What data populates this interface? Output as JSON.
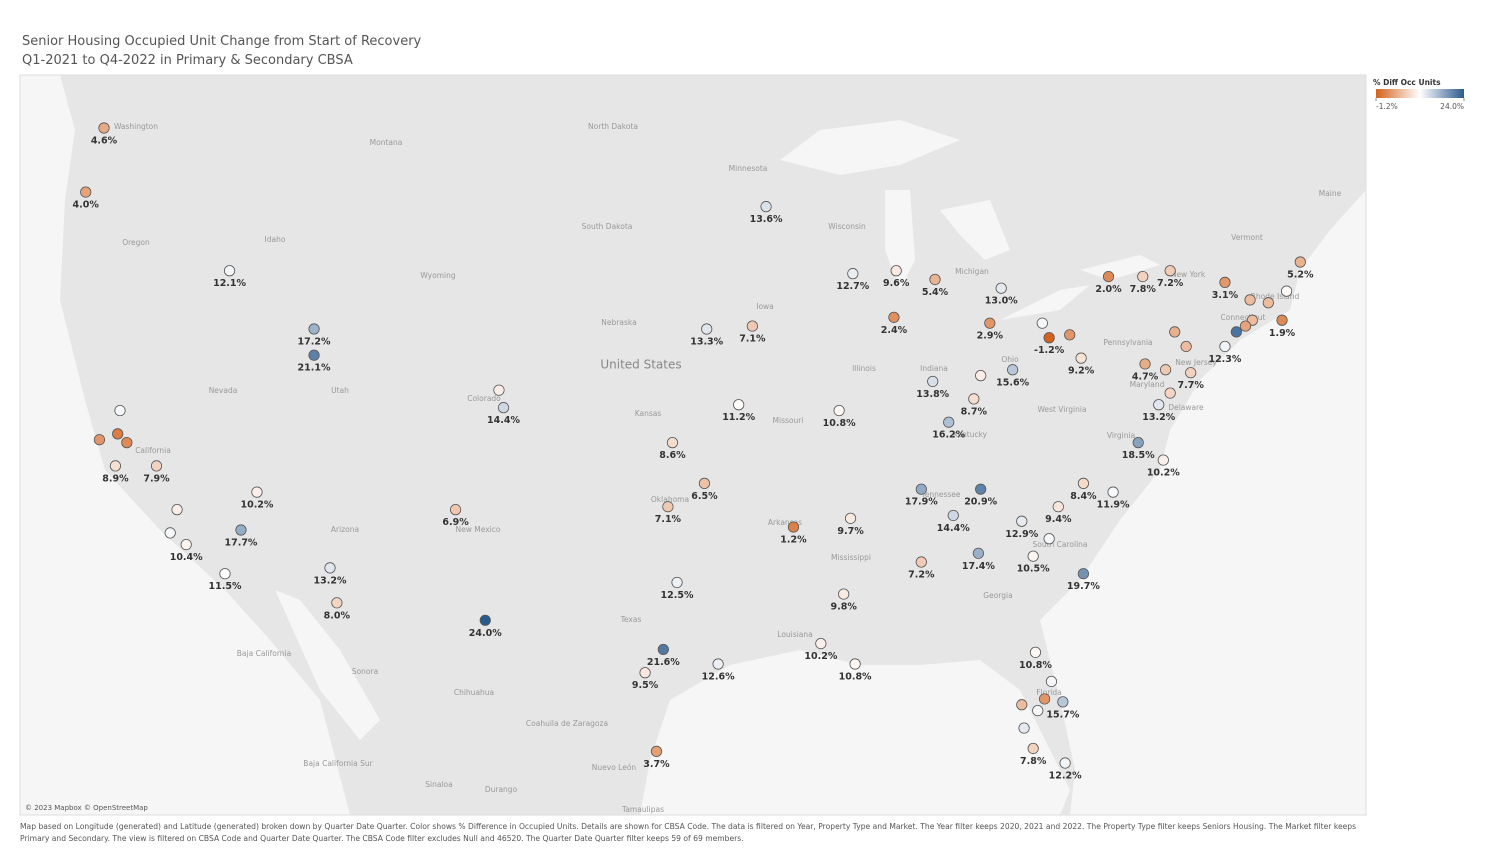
{
  "title": [
    "Senior Housing Occupied Unit Change from Start of Recovery",
    "Q1-2021 to Q4-2022 in Primary & Secondary CBSA"
  ],
  "chart_data": {
    "type": "map-points",
    "legend_title": "% Diff Occ Units",
    "clim": [
      -1.2,
      24.0
    ],
    "cticks": [
      {
        "value": -1.2,
        "label": "-1.2%"
      },
      {
        "value": 24.0,
        "label": "24.0%"
      }
    ],
    "colors": [
      "#d4621c",
      "#ffffff",
      "#2b5a8c"
    ],
    "lon": [
      -122.3,
      -123.1,
      -116.8,
      -113.1,
      -113.1,
      -121.6,
      -122.5,
      -121.7,
      -121.3,
      -121.8,
      -120.0,
      -115.6,
      -119.1,
      -119.4,
      -118.7,
      -116.3,
      -117.0,
      -112.4,
      -112.1,
      -106.9,
      -105.0,
      -104.8,
      -105.6,
      -93.3,
      -95.9,
      -93.9,
      -94.5,
      -97.4,
      -96.0,
      -97.6,
      -92.1,
      -97.2,
      -97.8,
      -95.4,
      -98.6,
      -98.1,
      -89.5,
      -87.6,
      -85.9,
      -83.0,
      -87.7,
      -83.5,
      -81.2,
      -80.9,
      -80.0,
      -79.5,
      -90.1,
      -86.0,
      -83.9,
      -82.5,
      -84.2,
      -85.3,
      -78.3,
      -76.8,
      -75.6,
      -73.2,
      -69.9,
      -72.1,
      -71.3,
      -70.5,
      -70.7,
      -72.0,
      -72.3,
      -72.7,
      -73.2,
      -75.4,
      -74.9,
      -76.7,
      -75.8,
      -74.7,
      -75.6,
      -76.1,
      -77.0,
      -75.9,
      -79.4,
      -78.1,
      -80.5,
      -82.1,
      -80.9,
      -81.6,
      -79.4,
      -86.5,
      -83.9,
      -85.1,
      -89.6,
      -84.0,
      -86.5,
      -89.9,
      -90.9,
      -89.4,
      -81.5,
      -80.8,
      -81.1,
      -80.3,
      -82.1,
      -81.4,
      -82.0,
      -81.6,
      -80.2
    ],
    "lat": [
      47.6,
      45.4,
      42.7,
      40.7,
      39.8,
      37.9,
      36.9,
      37.1,
      36.8,
      36.0,
      36.0,
      35.1,
      34.5,
      33.7,
      33.3,
      33.8,
      32.3,
      32.5,
      31.3,
      34.5,
      38.6,
      38.0,
      30.7,
      44.9,
      40.7,
      40.8,
      38.1,
      36.8,
      35.4,
      34.6,
      33.9,
      32.0,
      29.7,
      29.2,
      28.9,
      26.2,
      42.6,
      42.7,
      42.4,
      42.1,
      41.1,
      40.9,
      40.9,
      40.4,
      40.5,
      39.7,
      37.9,
      38.9,
      39.1,
      39.3,
      38.3,
      37.5,
      42.5,
      42.5,
      42.7,
      42.3,
      43.0,
      41.7,
      41.6,
      42.0,
      41.0,
      41.0,
      40.8,
      40.6,
      40.1,
      40.6,
      40.1,
      39.5,
      39.3,
      39.2,
      38.5,
      38.1,
      36.8,
      36.2,
      35.4,
      35.1,
      34.6,
      34.1,
      33.5,
      32.9,
      32.3,
      35.2,
      35.2,
      34.3,
      34.2,
      33.0,
      32.7,
      31.6,
      29.9,
      29.2,
      29.6,
      28.6,
      28.0,
      27.9,
      27.8,
      27.6,
      27.0,
      26.3,
      25.8
    ],
    "values": [
      4.6,
      4.0,
      12.1,
      17.2,
      21.1,
      12,
      3,
      1,
      2,
      8.9,
      7.9,
      10.2,
      10,
      12,
      10.4,
      17.7,
      11.5,
      13.2,
      8.0,
      6.9,
      10,
      14.4,
      24.0,
      13.6,
      13.3,
      7.1,
      11.2,
      8.6,
      6.5,
      7.1,
      1.2,
      12.5,
      21.6,
      12.6,
      9.5,
      3.7,
      12.7,
      9.6,
      5.4,
      13.0,
      2.4,
      2.9,
      12,
      -1.2,
      3,
      9.2,
      10.8,
      13.8,
      10,
      15.6,
      8.7,
      16.2,
      2.0,
      7.8,
      7.2,
      3.1,
      5.2,
      6,
      6,
      11,
      1.9,
      6,
      4,
      22,
      12.3,
      5,
      6,
      4.7,
      7,
      7.7,
      8,
      13.2,
      18.5,
      10.2,
      8.4,
      11.9,
      9.4,
      12.9,
      12,
      10.5,
      19.7,
      17.9,
      20.9,
      14.4,
      9.7,
      17.4,
      7.2,
      9.8,
      10.2,
      10.8,
      10.8,
      12,
      3,
      15.7,
      6,
      12,
      13,
      7.8,
      12.2
    ],
    "value_labels": [
      "4.6%",
      "4.0%",
      "12.1%",
      "17.2%",
      "21.1%",
      null,
      null,
      null,
      null,
      "8.9%",
      "7.9%",
      "10.2%",
      null,
      null,
      "10.4%",
      "17.7%",
      "11.5%",
      "13.2%",
      "8.0%",
      "6.9%",
      null,
      "14.4%",
      "24.0%",
      "13.6%",
      "13.3%",
      "7.1%",
      "11.2%",
      "8.6%",
      "6.5%",
      "7.1%",
      "1.2%",
      "12.5%",
      "21.6%",
      "12.6%",
      "9.5%",
      "3.7%",
      "12.7%",
      "9.6%",
      "5.4%",
      "13.0%",
      "2.4%",
      "2.9%",
      null,
      "-1.2%",
      null,
      "9.2%",
      "10.8%",
      "13.8%",
      null,
      "15.6%",
      "8.7%",
      "16.2%",
      "2.0%",
      "7.8%",
      "7.2%",
      "3.1%",
      "5.2%",
      null,
      null,
      null,
      "1.9%",
      null,
      null,
      null,
      "12.3%",
      null,
      null,
      "4.7%",
      null,
      "7.7%",
      null,
      "13.2%",
      "18.5%",
      "10.2%",
      "8.4%",
      "11.9%",
      "9.4%",
      "12.9%",
      null,
      "10.5%",
      "19.7%",
      "17.9%",
      "20.9%",
      "14.4%",
      "9.7%",
      "17.4%",
      "7.2%",
      "9.8%",
      "10.2%",
      "10.8%",
      "10.8%",
      null,
      null,
      "15.7%",
      null,
      null,
      null,
      "7.8%",
      "12.2%"
    ]
  },
  "map_labels": [
    "Washington",
    "Montana",
    "North Dakota",
    "Minnesota",
    "Oregon",
    "Idaho",
    "Wyoming",
    "South Dakota",
    "Wisconsin",
    "Michigan",
    "Nebraska",
    "Iowa",
    "United States",
    "Nevada",
    "Utah",
    "Colorado",
    "Kansas",
    "Missouri",
    "Illinois",
    "Indiana",
    "Ohio",
    "Pennsylvania",
    "New York",
    "Vermont",
    "Maine",
    "New Jersey",
    "Maryland",
    "Delaware",
    "West Virginia",
    "Virginia",
    "Kentucky",
    "Tennessee",
    "California",
    "Arizona",
    "New Mexico",
    "Oklahoma",
    "Arkansas",
    "Mississippi",
    "South Carolina",
    "Georgia",
    "Louisiana",
    "Texas",
    "Florida",
    "Connecticut",
    "Rhode Island",
    "Baja California",
    "Sonora",
    "Chihuahua",
    "Coahuila de Zaragoza",
    "Baja California Sur",
    "Nuevo León",
    "Sinaloa",
    "Durango",
    "Tamaulipas"
  ],
  "attribution": "© 2023 Mapbox © OpenStreetMap",
  "footnote": "Map based on Longitude (generated) and Latitude (generated) broken down by Quarter Date Quarter.  Color shows % Difference in Occupied Units.  Details are shown for CBSA Code. The data is filtered on Year, Property Type and Market. The Year filter keeps 2020, 2021 and 2022. The Property Type filter keeps Seniors Housing. The Market filter keeps Primary and Secondary. The view is filtered on CBSA Code and Quarter Date Quarter. The CBSA Code filter excludes Null and 46520. The Quarter Date Quarter filter keeps 59 of 69 members."
}
